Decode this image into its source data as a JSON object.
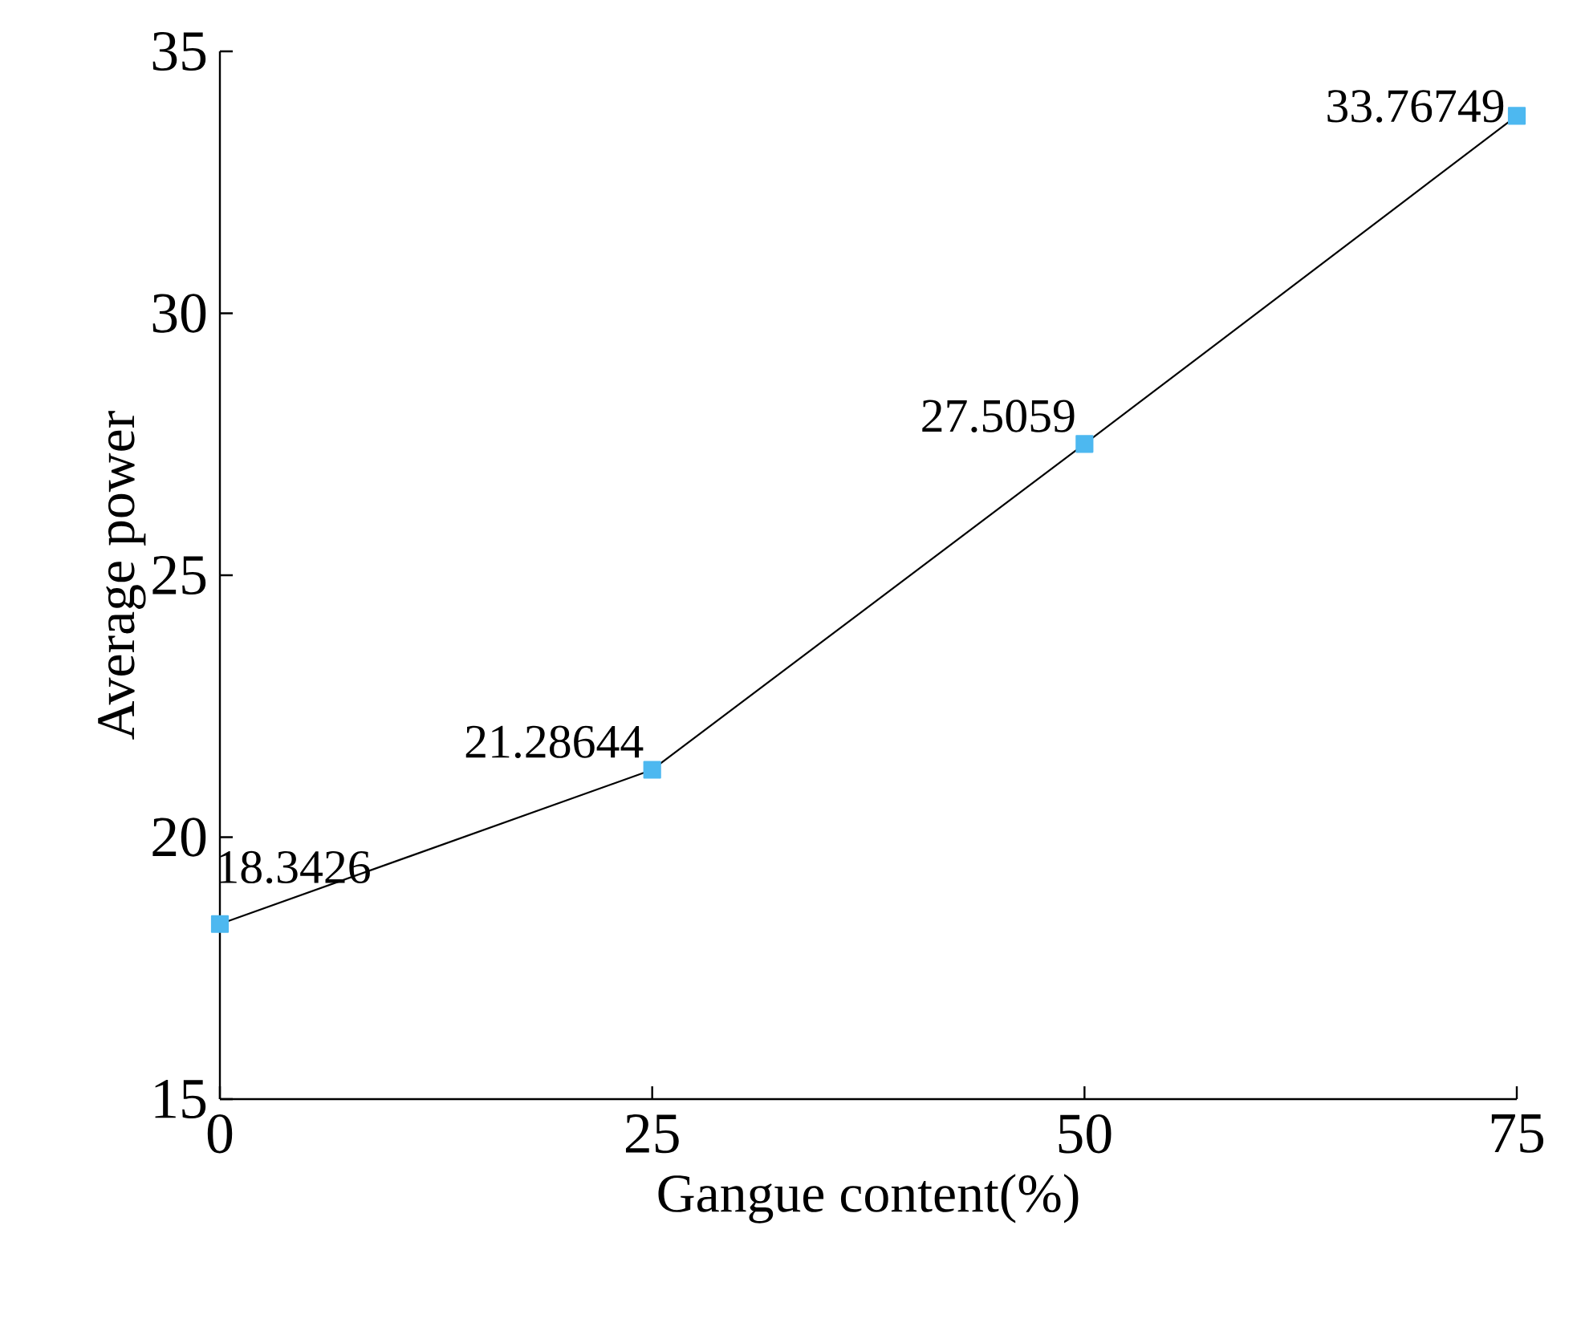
{
  "chart_data": {
    "type": "line",
    "xlabel": "Gangue content(%)",
    "ylabel": "Average power",
    "x": [
      0,
      25,
      50,
      75
    ],
    "series": [
      {
        "color": "#4db8f0",
        "values": [
          18.3426,
          21.28644,
          27.5059,
          33.76749
        ],
        "value_labels": [
          "18.3426",
          "21.28644",
          "27.5059",
          "33.76749"
        ]
      }
    ],
    "xlim": [
      0,
      75
    ],
    "ylim": [
      15,
      35
    ],
    "xticks": [
      0,
      25,
      50,
      75
    ],
    "yticks": [
      15,
      20,
      25,
      30,
      35
    ],
    "marker": "square",
    "line_style": "solid",
    "grid": false
  }
}
